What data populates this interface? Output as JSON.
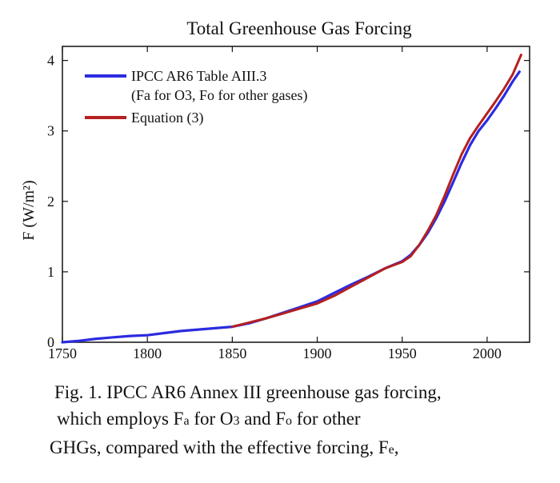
{
  "chart_data": {
    "type": "line",
    "title": "Total Greenhouse Gas Forcing",
    "xlabel": "",
    "ylabel": "F (W/m²)",
    "xlim": [
      1750,
      2025
    ],
    "ylim": [
      0,
      4.2
    ],
    "x_ticks": [
      1750,
      1800,
      1850,
      1900,
      1950,
      2000
    ],
    "y_ticks": [
      0,
      1,
      2,
      3,
      4
    ],
    "legend_position": "top-left",
    "series": [
      {
        "name": "IPCC AR6 Table AIII.3",
        "legend_line2": "(Fa for O3, Fo for other gases)",
        "color": "#2b2be0",
        "x": [
          1750,
          1760,
          1770,
          1780,
          1790,
          1800,
          1810,
          1820,
          1830,
          1840,
          1850,
          1860,
          1870,
          1880,
          1890,
          1900,
          1910,
          1920,
          1930,
          1940,
          1950,
          1955,
          1960,
          1965,
          1970,
          1975,
          1980,
          1985,
          1990,
          1995,
          2000,
          2005,
          2010,
          2015,
          2019
        ],
        "y": [
          0.0,
          0.02,
          0.05,
          0.07,
          0.09,
          0.1,
          0.13,
          0.16,
          0.18,
          0.2,
          0.22,
          0.27,
          0.34,
          0.42,
          0.5,
          0.58,
          0.7,
          0.82,
          0.93,
          1.05,
          1.15,
          1.24,
          1.38,
          1.55,
          1.76,
          2.0,
          2.27,
          2.55,
          2.8,
          3.0,
          3.15,
          3.32,
          3.5,
          3.7,
          3.84
        ]
      },
      {
        "name": "Equation (3)",
        "color": "#b52020",
        "x": [
          1850,
          1860,
          1870,
          1880,
          1890,
          1900,
          1910,
          1920,
          1930,
          1940,
          1950,
          1955,
          1960,
          1965,
          1970,
          1975,
          1980,
          1985,
          1990,
          1995,
          2000,
          2005,
          2010,
          2015,
          2020
        ],
        "y": [
          0.22,
          0.28,
          0.34,
          0.41,
          0.48,
          0.55,
          0.66,
          0.79,
          0.92,
          1.05,
          1.14,
          1.22,
          1.38,
          1.58,
          1.8,
          2.08,
          2.38,
          2.67,
          2.9,
          3.08,
          3.25,
          3.42,
          3.6,
          3.8,
          4.08
        ]
      }
    ]
  },
  "caption": {
    "line1": "Fig. 1. IPCC AR6 Annex III greenhouse gas forcing,",
    "line2_a": "which employs F",
    "line2_sub1": "a",
    "line2_b": " for O",
    "line2_sub2": "3",
    "line2_c": " and F",
    "line2_sub3": "o",
    "line2_d": " for other",
    "line3_a": "GHGs, compared with the effective forcing, F",
    "line3_sub": "e",
    "line3_b": ","
  }
}
